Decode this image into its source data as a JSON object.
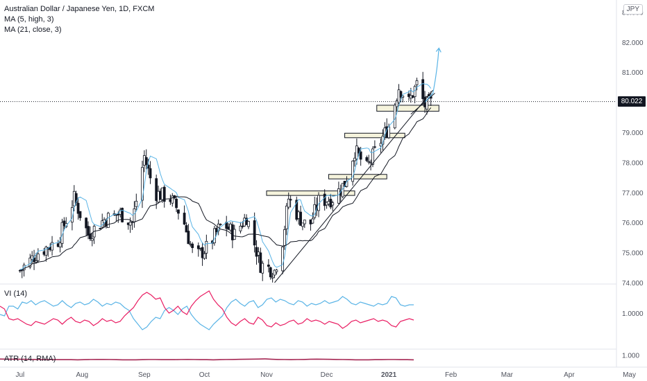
{
  "legend": {
    "symbol": "Australian Dollar / Japanese Yen, 1D, FXCM",
    "ma_fast": "MA (5, high, 3)",
    "ma_slow": "MA (21, close, 3)",
    "currency": "JPY"
  },
  "last_price_label": "80.022",
  "colors": {
    "candle_body": "#ffffff",
    "candle_outline": "#131722",
    "ma_fast": "#5ab4e6",
    "ma_slow": "#131722",
    "vi_plus": "#5ab4e6",
    "vi_minus": "#e91e63",
    "atr": "#a52652",
    "zone_fill": "#f5f3dc",
    "price_line": "#131722"
  },
  "chart_data": [
    {
      "type": "candlestick",
      "title": "Australian Dollar / Japanese Yen, 1D, FXCM",
      "x_ticks": [
        "Jul",
        "Aug",
        "Sep",
        "Oct",
        "Nov",
        "Dec",
        "2021",
        "Feb",
        "Mar",
        "Apr",
        "May"
      ],
      "x_tick_dates": [
        "2020-07-01",
        "2020-08-01",
        "2020-09-01",
        "2020-10-01",
        "2020-11-01",
        "2020-12-01",
        "2021-01-01",
        "2021-02-01",
        "2021-03-01",
        "2021-04-01",
        "2021-05-01"
      ],
      "y_ticks": [
        "74.000",
        "75.000",
        "76.000",
        "77.000",
        "78.000",
        "79.000",
        "80.000",
        "81.000",
        "82.000",
        "83.000"
      ],
      "ylim": [
        74.0,
        83.4
      ],
      "last_price": 80.022,
      "anchors": [
        {
          "date": "2020-07-01",
          "close": 74.4
        },
        {
          "date": "2020-07-10",
          "close": 75.0
        },
        {
          "date": "2020-07-20",
          "close": 75.4
        },
        {
          "date": "2020-07-28",
          "close": 76.8
        },
        {
          "date": "2020-08-04",
          "close": 75.6
        },
        {
          "date": "2020-08-12",
          "close": 76.1
        },
        {
          "date": "2020-08-20",
          "close": 76.3
        },
        {
          "date": "2020-08-26",
          "close": 76.0
        },
        {
          "date": "2020-09-01",
          "close": 78.2
        },
        {
          "date": "2020-09-06",
          "close": 77.0
        },
        {
          "date": "2020-09-14",
          "close": 76.8
        },
        {
          "date": "2020-09-20",
          "close": 76.2
        },
        {
          "date": "2020-09-26",
          "close": 74.8
        },
        {
          "date": "2020-10-03",
          "close": 75.2
        },
        {
          "date": "2020-10-10",
          "close": 76.0
        },
        {
          "date": "2020-10-16",
          "close": 75.6
        },
        {
          "date": "2020-10-22",
          "close": 76.2
        },
        {
          "date": "2020-10-29",
          "close": 74.6
        },
        {
          "date": "2020-11-05",
          "close": 74.4
        },
        {
          "date": "2020-11-09",
          "close": 75.4
        },
        {
          "date": "2020-11-12",
          "close": 76.8
        },
        {
          "date": "2020-11-17",
          "close": 76.2
        },
        {
          "date": "2020-11-22",
          "close": 75.8
        },
        {
          "date": "2020-11-27",
          "close": 76.7
        },
        {
          "date": "2020-12-04",
          "close": 76.8
        },
        {
          "date": "2020-12-10",
          "close": 77.3
        },
        {
          "date": "2020-12-15",
          "close": 78.4
        },
        {
          "date": "2020-12-21",
          "close": 77.8
        },
        {
          "date": "2020-12-27",
          "close": 78.6
        },
        {
          "date": "2021-01-01",
          "close": 79.2
        },
        {
          "date": "2021-01-06",
          "close": 80.5
        },
        {
          "date": "2021-01-11",
          "close": 80.0
        },
        {
          "date": "2021-01-15",
          "close": 80.6
        },
        {
          "date": "2021-01-19",
          "close": 79.9
        },
        {
          "date": "2021-01-23",
          "close": 80.0
        }
      ],
      "ma_fast_label": "MA (5, high, 3)",
      "ma_slow_label": "MA (21, close, 3)",
      "zones": [
        {
          "start": "2020-11-01",
          "end": "2020-12-15",
          "low": 76.9,
          "high": 77.05
        },
        {
          "start": "2020-12-02",
          "end": "2020-12-31",
          "low": 77.45,
          "high": 77.6
        },
        {
          "start": "2020-12-10",
          "end": "2021-01-09",
          "low": 78.82,
          "high": 78.97
        },
        {
          "start": "2020-12-26",
          "end": "2021-01-26",
          "low": 79.7,
          "high": 79.9
        }
      ],
      "trendlines": [
        {
          "from": {
            "date": "2020-11-05",
            "value": 74.0
          },
          "to": {
            "date": "2021-01-23",
            "value": 80.4
          }
        },
        {
          "from": {
            "date": "2021-01-12",
            "value": 79.6
          },
          "to": {
            "date": "2021-01-24",
            "value": 80.3
          }
        }
      ],
      "projection": {
        "points": [
          {
            "date": "2021-01-19",
            "value": 80.0
          },
          {
            "date": "2021-01-23",
            "value": 80.3
          },
          {
            "date": "2021-01-26",
            "value": 81.8
          }
        ]
      }
    },
    {
      "type": "line",
      "title": "VI (14)",
      "y_ticks": [
        "1.0000"
      ],
      "reference": 1.0,
      "ylim": [
        0.75,
        1.2
      ],
      "series": [
        {
          "name": "VI+",
          "values": [
            0.99,
            0.98,
            1.05,
            1.05,
            1.03,
            1.08,
            1.07,
            1.09,
            1.06,
            1.08,
            1.09,
            1.07,
            1.05,
            1.06,
            1.09,
            1.06,
            1.04,
            1.07,
            1.08,
            1.06,
            1.07,
            1.1,
            1.08,
            1.05,
            1.07,
            1.06,
            1.08,
            1.07,
            1.04,
            1.02,
            0.96,
            0.92,
            0.88,
            0.9,
            0.94,
            0.97,
            0.96,
            1.02,
            1.04,
            1.02,
            0.99,
            1.03,
            1.05,
            0.99,
            0.95,
            0.92,
            0.9,
            0.88,
            0.92,
            0.95,
            0.98,
            1.04,
            1.08,
            1.1,
            1.07,
            1.05,
            1.08,
            1.09,
            1.04,
            1.06,
            1.1,
            1.11,
            1.08,
            1.1,
            1.09,
            1.07,
            1.06,
            1.09,
            1.08,
            1.05,
            1.07,
            1.06,
            1.07,
            1.09,
            1.07,
            1.08,
            1.09,
            1.12,
            1.1,
            1.07,
            1.06,
            1.08,
            1.07,
            1.06,
            1.05,
            1.07,
            1.06,
            1.07,
            1.12,
            1.11,
            1.06,
            1.05,
            1.06,
            1.06
          ]
        },
        {
          "name": "VI-",
          "values": [
            1.05,
            1.03,
            0.96,
            0.95,
            0.96,
            0.94,
            0.92,
            0.91,
            0.94,
            0.93,
            0.92,
            0.94,
            0.96,
            0.95,
            0.92,
            0.95,
            0.97,
            0.94,
            0.93,
            0.95,
            0.94,
            0.91,
            0.93,
            0.96,
            0.94,
            0.95,
            0.93,
            0.94,
            0.98,
            1.01,
            1.04,
            1.09,
            1.13,
            1.15,
            1.13,
            1.1,
            1.11,
            1.04,
            1.0,
            1.02,
            1.05,
            1.01,
            0.99,
            1.05,
            1.09,
            1.12,
            1.14,
            1.16,
            1.1,
            1.06,
            1.03,
            0.97,
            0.93,
            0.91,
            0.94,
            0.96,
            0.93,
            0.92,
            0.97,
            0.95,
            0.91,
            0.9,
            0.93,
            0.91,
            0.92,
            0.94,
            0.95,
            0.92,
            0.93,
            0.96,
            0.94,
            0.95,
            0.94,
            0.92,
            0.94,
            0.93,
            0.92,
            0.89,
            0.91,
            0.94,
            0.95,
            0.93,
            0.94,
            0.95,
            0.96,
            0.94,
            0.95,
            0.94,
            0.91,
            0.9,
            0.94,
            0.95,
            0.96,
            0.95
          ]
        }
      ]
    },
    {
      "type": "line",
      "title": "ATR (14, RMA)",
      "y_ticks": [
        "1.000"
      ],
      "ylim": [
        0.0,
        1.4
      ],
      "series": [
        {
          "name": "ATR",
          "values": [
            0.62,
            0.61,
            0.6,
            0.6,
            0.59,
            0.58,
            0.58,
            0.57,
            0.57,
            0.56,
            0.56,
            0.56,
            0.55,
            0.56,
            0.57,
            0.58,
            0.58,
            0.57,
            0.56,
            0.55,
            0.55,
            0.55,
            0.56,
            0.57,
            0.57,
            0.56,
            0.56,
            0.56,
            0.57,
            0.58,
            0.57,
            0.56,
            0.56,
            0.55,
            0.56,
            0.57,
            0.58,
            0.59,
            0.6,
            0.61,
            0.62,
            0.63,
            0.6,
            0.58,
            0.57,
            0.56,
            0.57,
            0.58,
            0.6,
            0.61,
            0.6,
            0.59,
            0.58,
            0.57,
            0.56,
            0.55,
            0.55,
            0.55,
            0.56,
            0.56,
            0.57,
            0.57,
            0.56,
            0.56,
            0.55
          ]
        }
      ]
    }
  ]
}
